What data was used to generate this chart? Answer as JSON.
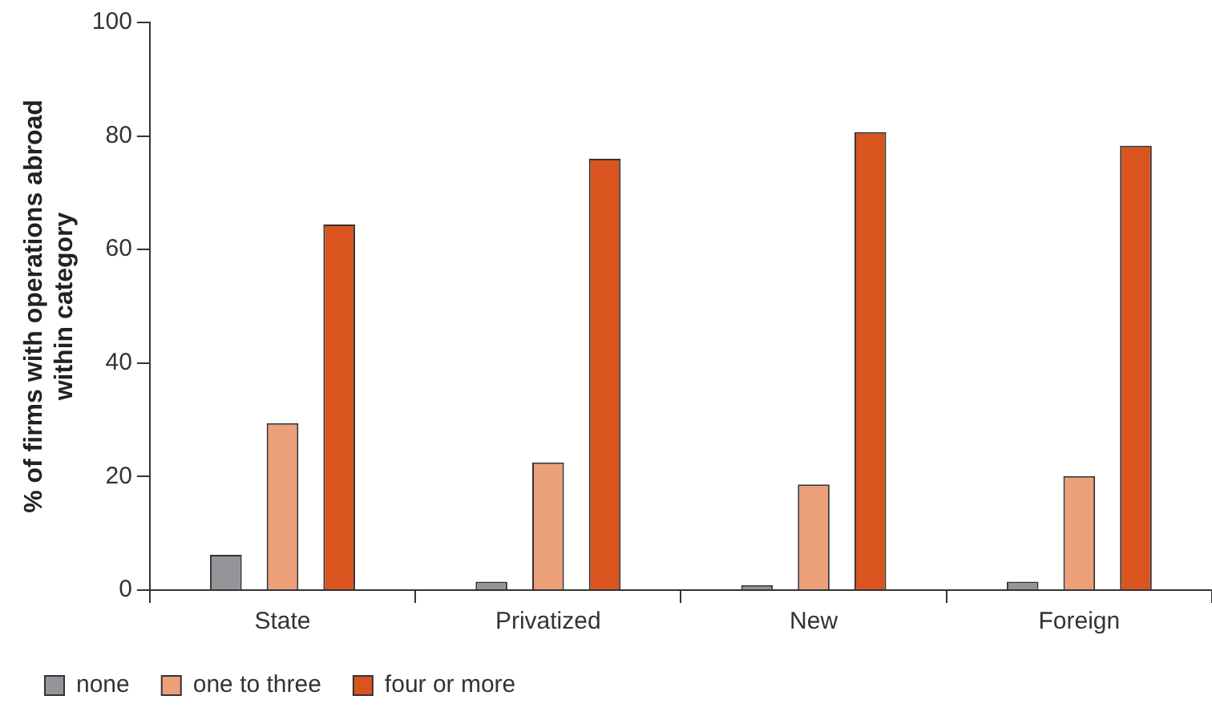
{
  "chart_data": {
    "type": "bar",
    "ylabel": "% of firms with operations abroad\nwithin category",
    "categories": [
      "State",
      "Privatized",
      "New",
      "Foreign"
    ],
    "series": [
      {
        "name": "none",
        "color": "#939598",
        "values": [
          6.2,
          1.5,
          0.9,
          1.5
        ]
      },
      {
        "name": "one to three",
        "color": "#eba07a",
        "values": [
          29.4,
          22.5,
          18.6,
          20.1
        ]
      },
      {
        "name": "four or more",
        "color": "#d9541e",
        "values": [
          64.4,
          76.0,
          80.7,
          78.3
        ]
      }
    ],
    "ylim": [
      0,
      100
    ],
    "yticks": [
      0,
      20,
      40,
      60,
      80,
      100
    ],
    "grid": false,
    "legend": "bottom left"
  }
}
